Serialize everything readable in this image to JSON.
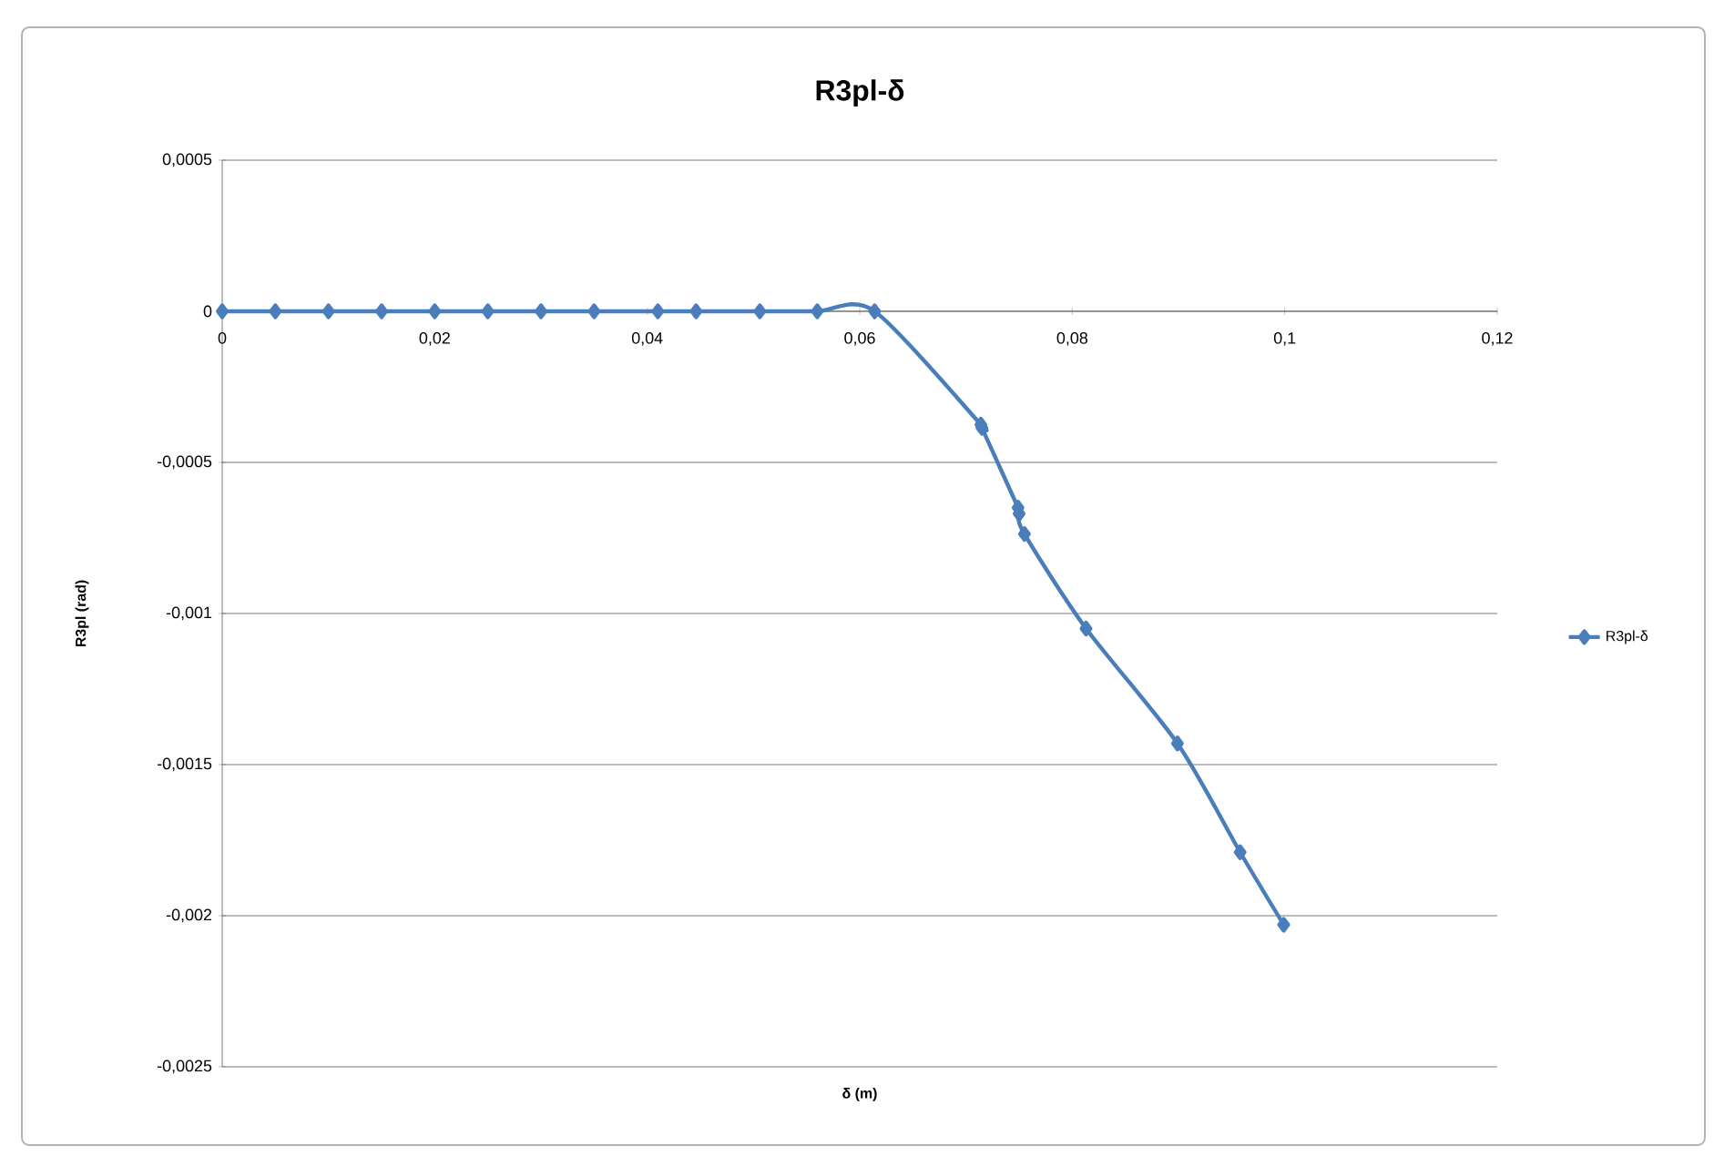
{
  "chart_data": {
    "type": "line",
    "title": "R3pl-δ",
    "xlabel": "δ (m)",
    "ylabel": "R3pl (rad)",
    "x": [
      0,
      0.005,
      0.01,
      0.015,
      0.02,
      0.025,
      0.03,
      0.035,
      0.041,
      0.0446,
      0.0506,
      0.056,
      0.0614,
      0.0714,
      0.0715,
      0.0749,
      0.075,
      0.0755,
      0.0813,
      0.0899,
      0.0958,
      0.0999
    ],
    "series": [
      {
        "name": "R3pl-δ",
        "color": "#4a7ebb",
        "values": [
          0,
          0,
          0,
          0,
          0,
          0,
          0,
          0,
          0,
          0,
          0,
          0,
          0,
          -0.000375,
          -0.000386,
          -0.00065,
          -0.00067,
          -0.000737,
          -0.00105,
          -0.00143,
          -0.00179,
          -0.00203
        ]
      }
    ],
    "xlim": [
      0,
      0.12
    ],
    "ylim": [
      -0.0025,
      0.0005
    ],
    "xticks": [
      0,
      {
        "value": 0.02,
        "label": "0,02"
      },
      {
        "value": 0.04,
        "label": "0,04"
      },
      {
        "value": 0.06,
        "label": "0,06"
      },
      {
        "value": 0.08,
        "label": "0,08"
      },
      {
        "value": 0.1,
        "label": "0,1"
      },
      {
        "value": 0.12,
        "label": "0,12"
      }
    ],
    "yticks": [
      {
        "value": -0.0025,
        "label": "-0,0025"
      },
      {
        "value": -0.002,
        "label": "-0,002"
      },
      {
        "value": -0.0015,
        "label": "-0,0015"
      },
      {
        "value": -0.001,
        "label": "-0,001"
      },
      {
        "value": -0.0005,
        "label": "-0,0005"
      },
      0,
      {
        "value": 0.0005,
        "label": "0,0005"
      }
    ],
    "grid": "y",
    "legend": "right",
    "marker": "diamond",
    "line_style": "solid"
  }
}
